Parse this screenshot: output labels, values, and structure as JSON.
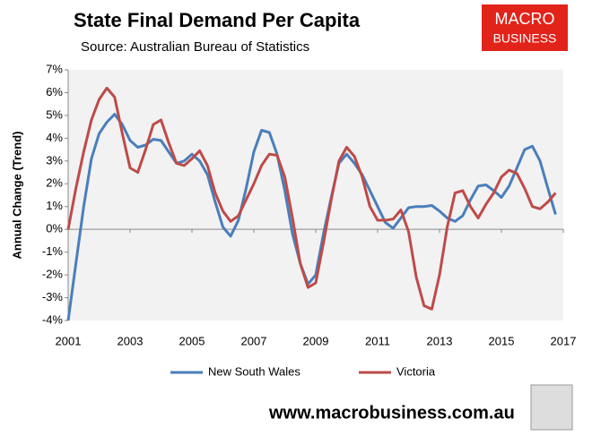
{
  "chart_data": {
    "type": "line",
    "title": "State Final Demand Per Capita",
    "subtitle": "Source: Australian Bureau of Statistics",
    "y_label": "Annual Change (Trend)",
    "logo": [
      "MACRO",
      "BUSINESS"
    ],
    "footer": "www.macrobusiness.com.au",
    "x": [
      2001,
      2001.25,
      2001.5,
      2001.75,
      2002,
      2002.25,
      2002.5,
      2002.75,
      2003,
      2003.25,
      2003.5,
      2003.75,
      2004,
      2004.25,
      2004.5,
      2004.75,
      2005,
      2005.25,
      2005.5,
      2005.75,
      2006,
      2006.25,
      2006.5,
      2006.75,
      2007,
      2007.25,
      2007.5,
      2007.75,
      2008,
      2008.25,
      2008.5,
      2008.75,
      2009,
      2009.25,
      2009.5,
      2009.75,
      2010,
      2010.25,
      2010.5,
      2010.75,
      2011,
      2011.25,
      2011.5,
      2011.75,
      2012,
      2012.25,
      2012.5,
      2012.75,
      2013,
      2013.25,
      2013.5,
      2013.75,
      2014,
      2014.25,
      2014.5,
      2014.75,
      2015,
      2015.25,
      2015.5,
      2015.75,
      2016,
      2016.25,
      2016.5,
      2016.75
    ],
    "series": [
      {
        "name": "New South Wales",
        "color": "#4a7ebb",
        "values": [
          -4,
          -1.5,
          1,
          3.1,
          4.2,
          4.7,
          5.05,
          4.6,
          3.9,
          3.6,
          3.7,
          3.95,
          3.9,
          3.4,
          2.9,
          3.0,
          3.3,
          3.0,
          2.4,
          1.2,
          0.1,
          -0.3,
          0.4,
          1.8,
          3.4,
          4.35,
          4.25,
          3.3,
          1.7,
          -0.2,
          -1.5,
          -2.4,
          -2.0,
          -0.2,
          1.4,
          2.9,
          3.3,
          2.9,
          2.4,
          1.7,
          1.0,
          0.3,
          0.05,
          0.5,
          0.95,
          1.0,
          1.0,
          1.05,
          0.8,
          0.5,
          0.35,
          0.6,
          1.3,
          1.9,
          1.95,
          1.7,
          1.4,
          1.9,
          2.7,
          3.5,
          3.65,
          3.0,
          1.8,
          0.65
        ]
      },
      {
        "name": "Victoria",
        "color": "#be4b48",
        "values": [
          0,
          1.8,
          3.4,
          4.8,
          5.7,
          6.2,
          5.8,
          4.2,
          2.7,
          2.5,
          3.5,
          4.6,
          4.8,
          3.8,
          2.9,
          2.8,
          3.1,
          3.45,
          2.8,
          1.6,
          0.8,
          0.35,
          0.6,
          1.3,
          2.0,
          2.8,
          3.3,
          3.25,
          2.3,
          0.5,
          -1.5,
          -2.55,
          -2.35,
          -0.6,
          1.3,
          3.0,
          3.6,
          3.2,
          2.3,
          1.0,
          0.4,
          0.4,
          0.45,
          0.85,
          -0.1,
          -2.1,
          -3.35,
          -3.5,
          -2.0,
          0.1,
          1.6,
          1.7,
          1.0,
          0.5,
          1.1,
          1.6,
          2.3,
          2.6,
          2.45,
          1.8,
          1.0,
          0.9,
          1.2,
          1.6
        ]
      }
    ],
    "xlim": [
      2001,
      2017
    ],
    "xticks": [
      2001,
      2003,
      2005,
      2007,
      2009,
      2011,
      2013,
      2015,
      2017
    ],
    "ylim": [
      -4,
      7
    ],
    "yticks": [
      {
        "value": -4,
        "label": "-4%"
      },
      {
        "value": -3,
        "label": "-3%"
      },
      {
        "value": -2,
        "label": "-2%"
      },
      {
        "value": -1,
        "label": "-1%"
      },
      {
        "value": 0,
        "label": "0%"
      },
      {
        "value": 1,
        "label": "1%"
      },
      {
        "value": 2,
        "label": "2%"
      },
      {
        "value": 3,
        "label": "3%"
      },
      {
        "value": 4,
        "label": "4%"
      },
      {
        "value": 5,
        "label": "5%"
      },
      {
        "value": 6,
        "label": "6%"
      },
      {
        "value": 7,
        "label": "7%"
      }
    ],
    "legend": "bottom"
  }
}
